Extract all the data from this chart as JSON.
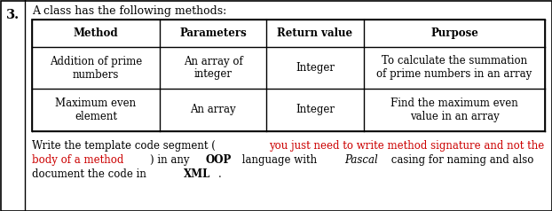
{
  "question_number": "3.",
  "question_text": "A class has the following methods:",
  "table_headers": [
    "Method",
    "Parameters",
    "Return value",
    "Purpose"
  ],
  "table_rows": [
    [
      "Addition of prime\nnumbers",
      "An array of\ninteger",
      "Integer",
      "To calculate the summation\nof prime numbers in an array"
    ],
    [
      "Maximum even\nelement",
      "An array",
      "Integer",
      "Find the maximum even\nvalue in an array"
    ]
  ],
  "line1_segs": [
    {
      "text": "Write the template code segment (",
      "color": "#000000",
      "bold": false,
      "italic": false
    },
    {
      "text": "you just need to write method signature and not the",
      "color": "#cc0000",
      "bold": false,
      "italic": false
    }
  ],
  "line2_segs": [
    {
      "text": "body of a method",
      "color": "#cc0000",
      "bold": false,
      "italic": false
    },
    {
      "text": ") in any ",
      "color": "#000000",
      "bold": false,
      "italic": false
    },
    {
      "text": "OOP",
      "color": "#000000",
      "bold": true,
      "italic": false
    },
    {
      "text": " language with ",
      "color": "#000000",
      "bold": false,
      "italic": false
    },
    {
      "text": "Pascal",
      "color": "#000000",
      "bold": false,
      "italic": true
    },
    {
      "text": " casing for naming and also",
      "color": "#000000",
      "bold": false,
      "italic": false
    }
  ],
  "line3_segs": [
    {
      "text": "document the code in ",
      "color": "#000000",
      "bold": false,
      "italic": false
    },
    {
      "text": "XML",
      "color": "#000000",
      "bold": true,
      "italic": false
    },
    {
      "text": ".",
      "color": "#000000",
      "bold": false,
      "italic": false
    }
  ],
  "bg_color": "#ffffff",
  "border_color": "#000000",
  "font_size": 8.5,
  "header_font_size": 8.5,
  "text_font_size": 8.5
}
